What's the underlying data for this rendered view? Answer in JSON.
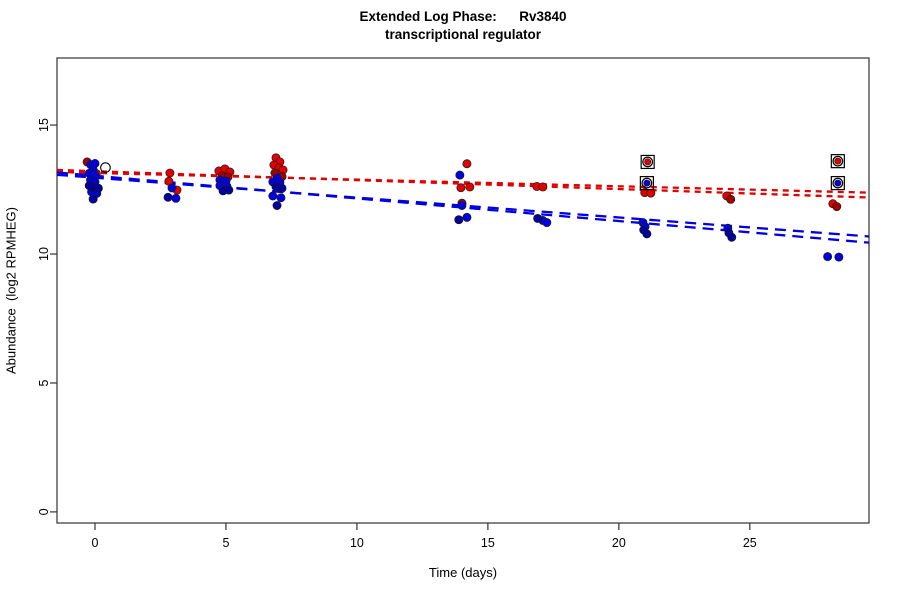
{
  "title": {
    "line1": "Extended Log Phase:      Rv3840",
    "line2": "transcriptional regulator"
  },
  "chart_data": {
    "type": "scatter",
    "title": "Extended Log Phase: Rv3840 transcriptional regulator",
    "xlabel": "Time  (days)",
    "ylabel": "Abundance  (log2 RPMHEG)",
    "xlim": [
      -1.45,
      29.55
    ],
    "ylim": [
      -0.43,
      17.6
    ],
    "x_ticks": [
      0,
      5,
      10,
      15,
      20,
      25
    ],
    "y_ticks": [
      0,
      5,
      10,
      15
    ],
    "grid": false,
    "legend": "none",
    "colors": {
      "red": "#E10000",
      "darkred": "#A40000",
      "blue": "#0000E1",
      "darkblue": "#0000A0",
      "marker_outline": "#000000",
      "axis": "#333333"
    },
    "series": [
      {
        "name": "red-points",
        "color_key": "red",
        "points": [
          [
            -0.1,
            13.22
          ],
          [
            0.05,
            13.12
          ],
          [
            2.86,
            13.14
          ],
          [
            2.82,
            12.82
          ],
          [
            3.13,
            12.48
          ],
          [
            4.73,
            13.22
          ],
          [
            4.96,
            13.3
          ],
          [
            5.15,
            13.18
          ],
          [
            6.91,
            13.73
          ],
          [
            7.06,
            13.57
          ],
          [
            6.83,
            13.45
          ],
          [
            7.02,
            13.33
          ],
          [
            7.18,
            13.26
          ],
          [
            14.2,
            13.5
          ],
          [
            13.97,
            12.57
          ],
          [
            14.31,
            12.6
          ],
          [
            16.87,
            12.62
          ],
          [
            17.1,
            12.6
          ],
          [
            20.99,
            12.38
          ],
          [
            21.22,
            12.36
          ],
          [
            24.12,
            12.25
          ],
          [
            28.17,
            11.95
          ]
        ]
      },
      {
        "name": "darkred-points",
        "color_key": "darkred",
        "points": [
          [
            -0.3,
            13.57
          ],
          [
            4.85,
            13.03
          ],
          [
            5.08,
            12.99
          ],
          [
            6.87,
            13.14
          ],
          [
            7.14,
            13.0
          ],
          [
            14.01,
            11.97
          ],
          [
            24.27,
            12.12
          ],
          [
            28.32,
            11.84
          ]
        ]
      },
      {
        "name": "blue-points",
        "color_key": "blue",
        "points": [
          [
            -0.17,
            13.47
          ],
          [
            0.0,
            13.51
          ],
          [
            -0.07,
            13.26
          ],
          [
            -0.22,
            13.13
          ],
          [
            0.0,
            13.06
          ],
          [
            -0.17,
            12.87
          ],
          [
            0.0,
            12.8
          ],
          [
            -0.13,
            12.41
          ],
          [
            0.07,
            12.35
          ],
          [
            2.94,
            12.56
          ],
          [
            3.09,
            12.16
          ],
          [
            4.77,
            12.87
          ],
          [
            5.0,
            12.83
          ],
          [
            4.77,
            12.65
          ],
          [
            5.04,
            12.62
          ],
          [
            6.95,
            12.95
          ],
          [
            6.79,
            12.8
          ],
          [
            7.06,
            12.78
          ],
          [
            6.79,
            12.25
          ],
          [
            7.1,
            12.18
          ],
          [
            13.93,
            13.06
          ],
          [
            14.01,
            11.88
          ],
          [
            14.2,
            11.42
          ],
          [
            17.1,
            11.3
          ],
          [
            17.25,
            11.22
          ],
          [
            20.92,
            11.22
          ],
          [
            21.0,
            11.06
          ],
          [
            24.16,
            11.0
          ],
          [
            27.97,
            9.9
          ],
          [
            28.4,
            9.88
          ]
        ]
      },
      {
        "name": "darkblue-points",
        "color_key": "darkblue",
        "points": [
          [
            -0.22,
            12.65
          ],
          [
            -0.04,
            12.57
          ],
          [
            0.13,
            12.55
          ],
          [
            -0.07,
            12.13
          ],
          [
            2.79,
            12.2
          ],
          [
            4.89,
            12.45
          ],
          [
            5.11,
            12.48
          ],
          [
            6.91,
            12.61
          ],
          [
            7.14,
            12.55
          ],
          [
            6.95,
            11.88
          ],
          [
            13.89,
            11.33
          ],
          [
            16.9,
            11.38
          ],
          [
            20.95,
            10.93
          ],
          [
            21.07,
            10.78
          ],
          [
            24.2,
            10.82
          ],
          [
            24.31,
            10.65
          ]
        ]
      }
    ],
    "outlier_markers": [
      {
        "day": 21.1,
        "value": 13.57,
        "color_key": "red"
      },
      {
        "day": 21.07,
        "value": 12.75,
        "color_key": "blue"
      },
      {
        "day": 28.36,
        "value": 13.6,
        "color_key": "red"
      },
      {
        "day": 28.36,
        "value": 12.75,
        "color_key": "blue"
      }
    ],
    "open_circle_markers": [
      {
        "day": 0.4,
        "value": 13.35
      }
    ],
    "trend_lines": [
      {
        "name": "red-trend-1",
        "color_key": "red",
        "dash": "6 5",
        "start": [
          -1.45,
          13.18
        ],
        "end": [
          29.55,
          12.38
        ]
      },
      {
        "name": "red-trend-2",
        "color_key": "red",
        "dash": "6 5",
        "start": [
          -1.45,
          13.26
        ],
        "end": [
          29.55,
          12.19
        ]
      },
      {
        "name": "blue-trend-1",
        "color_key": "blue",
        "dash": "11 7",
        "start": [
          -1.45,
          13.16
        ],
        "end": [
          29.55,
          10.44
        ]
      },
      {
        "name": "blue-trend-2",
        "color_key": "blue",
        "dash": "11 7",
        "start": [
          -1.45,
          13.07
        ],
        "end": [
          29.55,
          10.68
        ]
      }
    ]
  }
}
